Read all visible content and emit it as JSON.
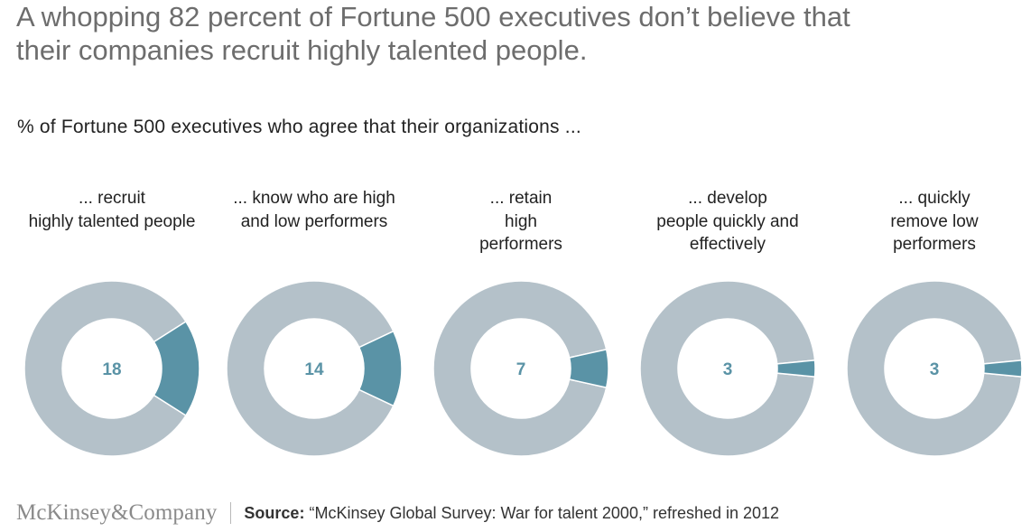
{
  "headline": {
    "line1": "A whopping 82 percent of Fortune 500 executives don’t believe that",
    "line2": "their companies recruit highly talented people."
  },
  "footer": {
    "logo": "McKinsey&Company",
    "source_label": "Source:",
    "source_text": "“McKinsey Global Survey: War for talent 2000,” refreshed in 2012"
  },
  "colors": {
    "highlight": "#5a93a6",
    "remainder": "#b4c1c9",
    "value_text": "#5a93a6"
  },
  "chart_data": {
    "type": "pie",
    "title": "% of Fortune 500 executives who agree that their organizations ...",
    "unit": "%",
    "series": [
      {
        "name": "... recruit highly talented people",
        "label_lines": [
          "... recruit",
          "highly talented people"
        ],
        "value": 18
      },
      {
        "name": "... know who are high and low performers",
        "label_lines": [
          "... know who are high",
          "and low performers"
        ],
        "value": 14
      },
      {
        "name": "... retain high performers",
        "label_lines": [
          "... retain",
          "high",
          "performers"
        ],
        "value": 7
      },
      {
        "name": "... develop people quickly and effectively",
        "label_lines": [
          "... develop",
          "people quickly and",
          "effectively"
        ],
        "value": 3
      },
      {
        "name": "... quickly remove low performers",
        "label_lines": [
          "... quickly",
          "remove low",
          "performers"
        ],
        "value": 3
      }
    ]
  }
}
